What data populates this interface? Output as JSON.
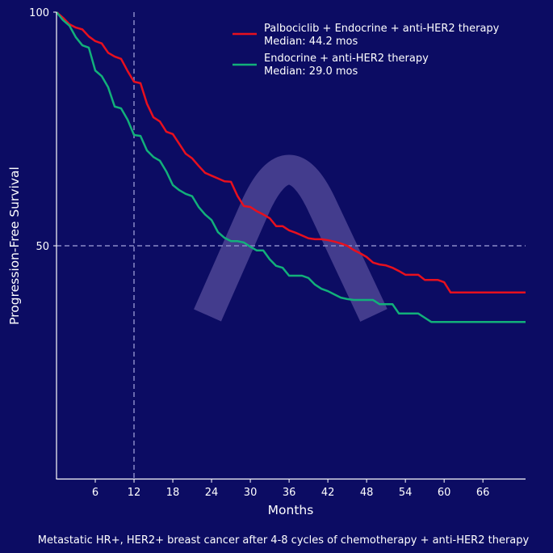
{
  "chart_data": {
    "type": "line",
    "xlabel": "Months",
    "ylabel": "Progression-Free Survival",
    "caption": "Metastatic HR+, HER2+ breast cancer after 4-8 cycles of chemotherapy + anti-HER2 therapy",
    "xlim": [
      0,
      72.6
    ],
    "ylim": [
      0,
      100
    ],
    "xticks": [
      6,
      12,
      18,
      24,
      30,
      36,
      42,
      48,
      54,
      60,
      66
    ],
    "yticks": [
      50,
      100
    ],
    "reference_lines": {
      "x": 12,
      "y": 50
    },
    "legend_position": "top-right",
    "series": [
      {
        "name": "Palbociclib + Endocrine + anti-HER2 therapy",
        "median_label": "Median: 44.2 mos",
        "color": "#e8101e",
        "x": [
          0,
          1,
          2,
          3,
          4,
          5,
          6,
          7,
          8,
          9,
          10,
          11,
          12,
          13,
          14,
          15,
          16,
          17,
          18,
          19,
          20,
          21,
          22,
          23,
          24,
          25,
          26,
          27,
          28,
          29,
          30,
          31,
          32,
          33,
          34,
          35,
          36,
          37,
          38,
          39,
          40,
          41,
          42,
          43,
          44,
          45,
          46,
          47,
          48,
          49,
          50,
          51,
          52,
          53,
          54,
          55,
          56,
          57,
          58,
          59,
          60,
          61,
          72.6
        ],
        "y": [
          100,
          98.8,
          97.4,
          96.7,
          96.3,
          94.8,
          93.8,
          93.3,
          91.3,
          90.5,
          90,
          87.4,
          85.1,
          84.8,
          80.4,
          77.5,
          76.6,
          74.4,
          73.9,
          71.8,
          69.7,
          68.7,
          67.1,
          65.6,
          65,
          64.4,
          63.8,
          63.7,
          60.7,
          58.5,
          58.3,
          57.4,
          56.7,
          55.9,
          54.2,
          54.2,
          53.3,
          52.8,
          52.2,
          51.6,
          51.4,
          51.4,
          51.2,
          50.9,
          50.5,
          50,
          49.1,
          48.4,
          47.6,
          46.4,
          46,
          45.8,
          45.3,
          44.6,
          43.8,
          43.8,
          43.8,
          42.7,
          42.7,
          42.7,
          42.2,
          40,
          40
        ]
      },
      {
        "name": "Endocrine + anti-HER2 therapy",
        "median_label": "Median: 29.0 mos",
        "color": "#12b07a",
        "x": [
          0,
          1,
          2,
          3,
          4,
          5,
          6,
          7,
          8,
          9,
          10,
          11,
          12,
          13,
          14,
          15,
          16,
          17,
          18,
          19,
          20,
          21,
          22,
          23,
          24,
          25,
          26,
          27,
          28,
          29,
          30,
          31,
          32,
          33,
          34,
          35,
          36,
          37,
          38,
          39,
          40,
          41,
          42,
          43,
          44,
          45,
          46,
          47,
          48,
          49,
          50,
          51,
          52,
          53,
          54,
          55,
          56,
          57,
          58,
          72.6
        ],
        "y": [
          100,
          98.3,
          97.1,
          94.6,
          92.9,
          92.4,
          87.5,
          86.3,
          83.9,
          79.8,
          79.4,
          77,
          73.7,
          73.5,
          70.4,
          69,
          68.2,
          65.9,
          63,
          61.9,
          61.1,
          60.6,
          58.3,
          56.7,
          55.5,
          52.9,
          51.7,
          51,
          51,
          50.7,
          49.8,
          49,
          49,
          47.1,
          45.7,
          45.3,
          43.6,
          43.6,
          43.6,
          43.1,
          41.7,
          40.8,
          40.3,
          39.6,
          38.9,
          38.6,
          38.4,
          38.4,
          38.4,
          38.4,
          37.5,
          37.5,
          37.5,
          35.5,
          35.5,
          35.5,
          35.5,
          34.6,
          33.7,
          33.7
        ]
      }
    ]
  }
}
